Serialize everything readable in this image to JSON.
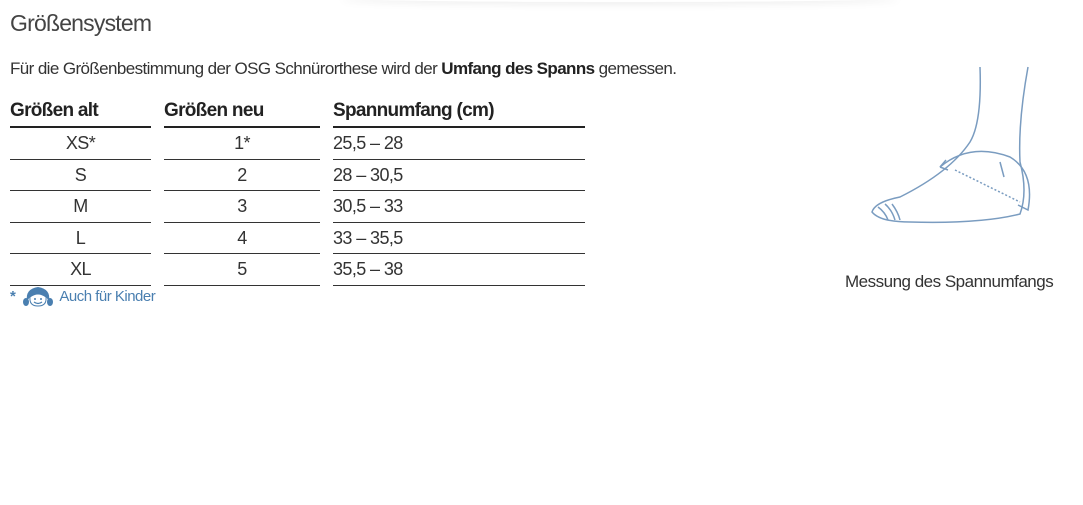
{
  "title": "Größensystem",
  "intro": {
    "before": "Für die Größenbestimmung der OSG Schnürorthese wird der ",
    "bold": "Umfang des Spanns",
    "after": " gemessen."
  },
  "table": {
    "headers": [
      "Größen alt",
      "Größen neu",
      "Spannumfang (cm)"
    ],
    "rows": [
      [
        "XS*",
        "1*",
        "25,5 – 28"
      ],
      [
        "S",
        "2",
        "28 – 30,5"
      ],
      [
        "M",
        "3",
        "30,5 – 33"
      ],
      [
        "L",
        "4",
        "33 – 35,5"
      ],
      [
        "XL",
        "5",
        "35,5 – 38"
      ]
    ]
  },
  "footnote": {
    "marker": "*",
    "icon": "child-face-icon",
    "text": "Auch für Kinder"
  },
  "illustration": {
    "icon": "foot-measurement-icon",
    "caption": "Messung des Spannumfangs"
  },
  "colors": {
    "accent": "#4a7fb0",
    "illustration": "#7a9cc0"
  }
}
